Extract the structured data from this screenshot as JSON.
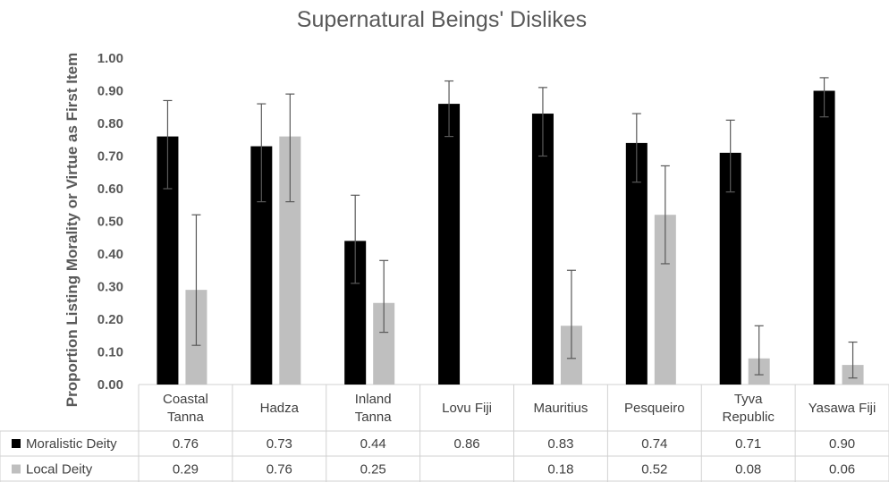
{
  "chart_data": {
    "type": "bar",
    "title": "Supernatural Beings' Dislikes",
    "ylabel": "Proportion Listing Morality or Virtue as First Item",
    "xlabel": "",
    "ylim": [
      0,
      1
    ],
    "yticks": [
      "0.00",
      "0.10",
      "0.20",
      "0.30",
      "0.40",
      "0.50",
      "0.60",
      "0.70",
      "0.80",
      "0.90",
      "1.00"
    ],
    "grid": false,
    "legend": "data-table",
    "categories": [
      [
        "Coastal",
        "Tanna"
      ],
      [
        "Hadza"
      ],
      [
        "Inland",
        "Tanna"
      ],
      [
        "Lovu Fiji"
      ],
      [
        "Mauritius"
      ],
      [
        "Pesqueiro"
      ],
      [
        "Tyva",
        "Republic"
      ],
      [
        "Yasawa Fiji"
      ]
    ],
    "series": [
      {
        "name": "Moralistic Deity",
        "color": "#000000",
        "values": [
          0.76,
          0.73,
          0.44,
          0.86,
          0.83,
          0.74,
          0.71,
          0.9
        ],
        "labels": [
          "0.76",
          "0.73",
          "0.44",
          "0.86",
          "0.83",
          "0.74",
          "0.71",
          "0.90"
        ],
        "err_low": [
          0.6,
          0.56,
          0.31,
          0.76,
          0.7,
          0.62,
          0.59,
          0.82
        ],
        "err_high": [
          0.87,
          0.86,
          0.58,
          0.93,
          0.91,
          0.83,
          0.81,
          0.94
        ]
      },
      {
        "name": "Local Deity",
        "color": "#bfbfbf",
        "values": [
          0.29,
          0.76,
          0.25,
          null,
          0.18,
          0.52,
          0.08,
          0.06
        ],
        "labels": [
          "0.29",
          "0.76",
          "0.25",
          "",
          "0.18",
          "0.52",
          "0.08",
          "0.06"
        ],
        "err_low": [
          0.12,
          0.56,
          0.16,
          null,
          0.08,
          0.37,
          0.03,
          0.02
        ],
        "err_high": [
          0.52,
          0.89,
          0.38,
          null,
          0.35,
          0.67,
          0.18,
          0.13
        ]
      }
    ]
  }
}
